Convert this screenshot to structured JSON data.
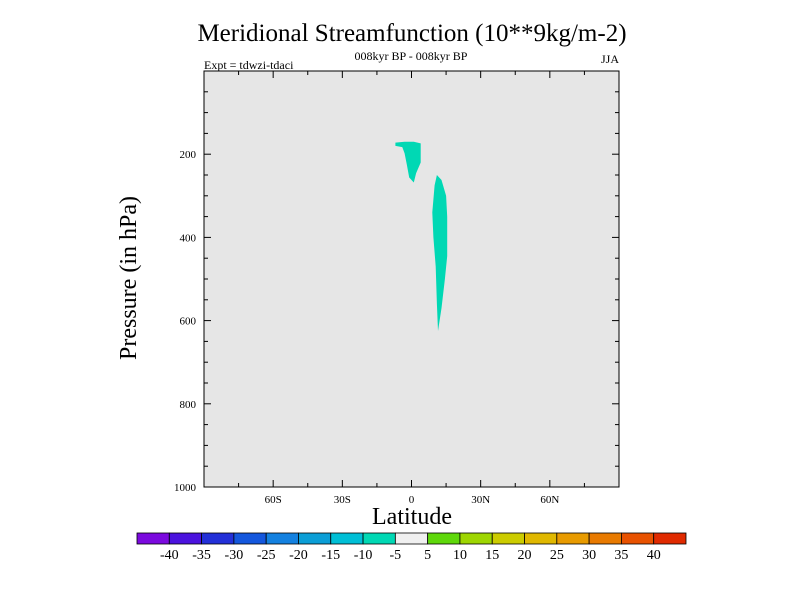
{
  "chart_data": {
    "type": "contour",
    "title": "Meridional Streamfunction (10**9kg/m-2)",
    "subtitle_center": "008kyr BP - 008kyr BP",
    "subtitle_left": "Expt = tdwzi-tdaci",
    "subtitle_right": "JJA",
    "xlabel": "Latitude",
    "ylabel": "Pressure (in hPa)",
    "xlim": [
      -90,
      90
    ],
    "ylim": [
      1000,
      0
    ],
    "y_inverted": true,
    "x_ticks": [
      {
        "value": -60,
        "label": "60S"
      },
      {
        "value": -30,
        "label": "30S"
      },
      {
        "value": 0,
        "label": "0"
      },
      {
        "value": 30,
        "label": "30N"
      },
      {
        "value": 60,
        "label": "60N"
      }
    ],
    "y_ticks": [
      {
        "value": 200,
        "label": "200"
      },
      {
        "value": 400,
        "label": "400"
      },
      {
        "value": 600,
        "label": "600"
      },
      {
        "value": 800,
        "label": "800"
      },
      {
        "value": 1000,
        "label": "1000"
      }
    ],
    "background_color": "#e6e6e6",
    "filled_regions": [
      {
        "level_range": [
          -10,
          -5
        ],
        "color": "#00d8b4",
        "points": [
          [
            -7,
            172
          ],
          [
            -3,
            170
          ],
          [
            1,
            170
          ],
          [
            4,
            174
          ],
          [
            4,
            196
          ],
          [
            4,
            220
          ],
          [
            2,
            246
          ],
          [
            1,
            268
          ],
          [
            -1,
            256
          ],
          [
            -2,
            226
          ],
          [
            -3,
            198
          ],
          [
            -4,
            183
          ],
          [
            -7,
            180
          ]
        ]
      },
      {
        "level_range": [
          -10,
          -5
        ],
        "color": "#00d8b4",
        "points": [
          [
            11,
            250
          ],
          [
            13,
            262
          ],
          [
            15,
            300
          ],
          [
            15.5,
            350
          ],
          [
            15.5,
            400
          ],
          [
            15.5,
            445
          ],
          [
            14.5,
            500
          ],
          [
            13,
            570
          ],
          [
            11.5,
            625
          ],
          [
            11,
            560
          ],
          [
            10.5,
            470
          ],
          [
            9.5,
            400
          ],
          [
            9,
            340
          ],
          [
            10,
            275
          ]
        ]
      }
    ],
    "colorbar": {
      "labels": [
        "-40",
        "-35",
        "-30",
        "-25",
        "-20",
        "-15",
        "-10",
        "-5",
        "5",
        "10",
        "15",
        "20",
        "25",
        "30",
        "35",
        "40"
      ],
      "colors": [
        "#7b0ade",
        "#4b13de",
        "#2330d8",
        "#1457dd",
        "#1481e0",
        "#0b9ed6",
        "#00bfd6",
        "#00d8b4",
        "#f0f0f0",
        "#5fd80b",
        "#9ed602",
        "#cccc00",
        "#e0b800",
        "#e89b00",
        "#e87a00",
        "#e85200",
        "#e02a00"
      ]
    }
  }
}
